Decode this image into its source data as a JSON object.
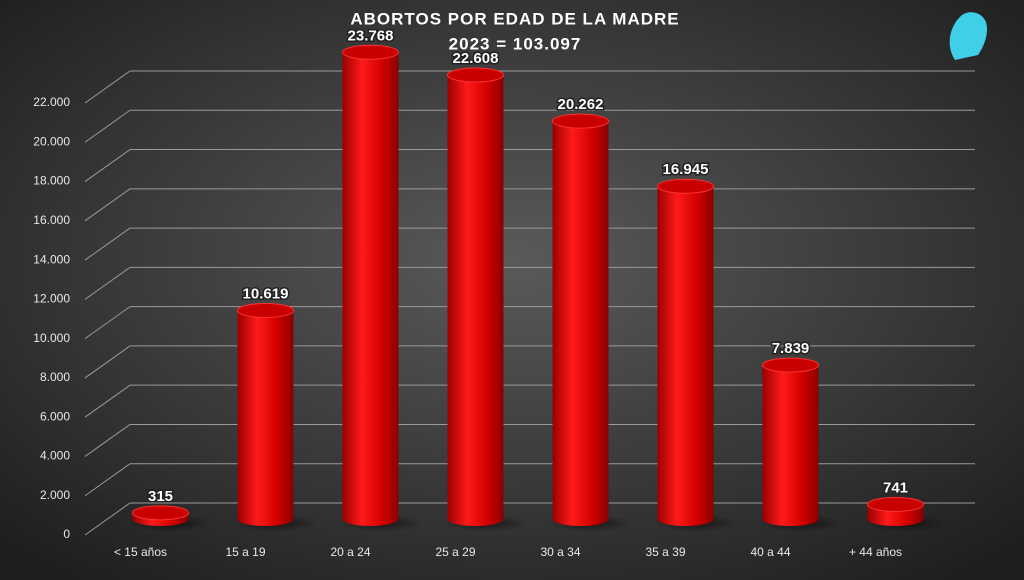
{
  "chart_data": {
    "type": "bar",
    "title": "ABORTOS POR EDAD DE LA MADRE",
    "subtitle": "2023 = 103.097",
    "categories": [
      "< 15 años",
      "15  a 19",
      "20 a 24",
      "25 a 29",
      "30 a 34",
      "35 a 39",
      "40 a 44",
      "+ 44 años"
    ],
    "values": [
      315,
      10619,
      23768,
      22608,
      20262,
      16945,
      7839,
      741
    ],
    "value_labels": [
      "315",
      "10.619",
      "23.768",
      "22.608",
      "20.262",
      "16.945",
      "7.839",
      "741"
    ],
    "color": "#e00000",
    "ylim": [
      0,
      22000
    ],
    "yticks": [
      0,
      {
        "value": 2000,
        "label": "2.000"
      },
      {
        "value": 4000,
        "label": "4.000"
      },
      {
        "value": 6000,
        "label": "6.000"
      },
      {
        "value": 8000,
        "label": "8.000"
      },
      {
        "value": 10000,
        "label": "10.000"
      },
      {
        "value": 12000,
        "label": "12.000"
      },
      {
        "value": 14000,
        "label": "14.000"
      },
      {
        "value": 16000,
        "label": "16.000"
      },
      {
        "value": 18000,
        "label": "18.000"
      },
      {
        "value": 20000,
        "label": "20.000"
      },
      {
        "value": 22000,
        "label": "22.000"
      }
    ],
    "grid": true
  }
}
